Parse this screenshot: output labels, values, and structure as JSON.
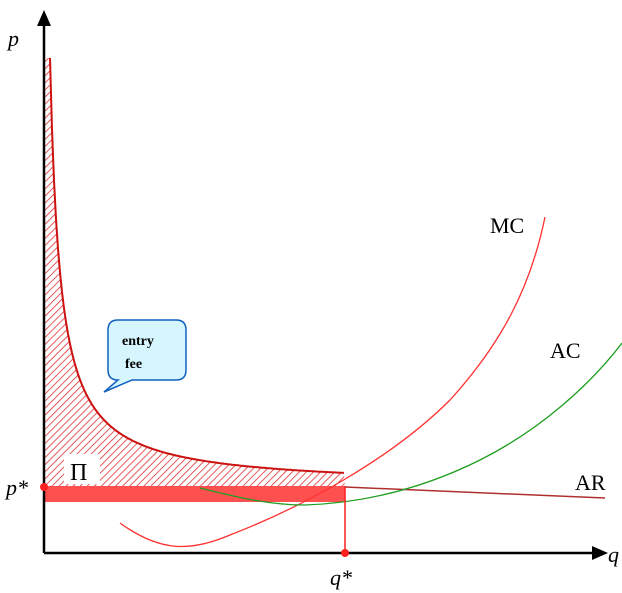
{
  "axes": {
    "y_label": "p",
    "x_label": "q"
  },
  "markers": {
    "price_label": "p*",
    "quantity_label": "q*"
  },
  "curves": {
    "mc": {
      "label": "MC",
      "color": "#ff3030"
    },
    "ac": {
      "label": "AC",
      "color": "#1f9e1f"
    },
    "ar": {
      "label": "AR",
      "color": "#b03030"
    },
    "demand_color": "#cc1111"
  },
  "regions": {
    "profit_label": "Π",
    "entry_fee": {
      "line1": "entry",
      "line2": "fee"
    },
    "hatch_color": "#e03030",
    "profit_fill": "#ff5050"
  },
  "colors": {
    "axis": "#000000",
    "marker": "#ff2020",
    "callout_fill": "#d6f6ff",
    "callout_stroke": "#1060c0"
  }
}
